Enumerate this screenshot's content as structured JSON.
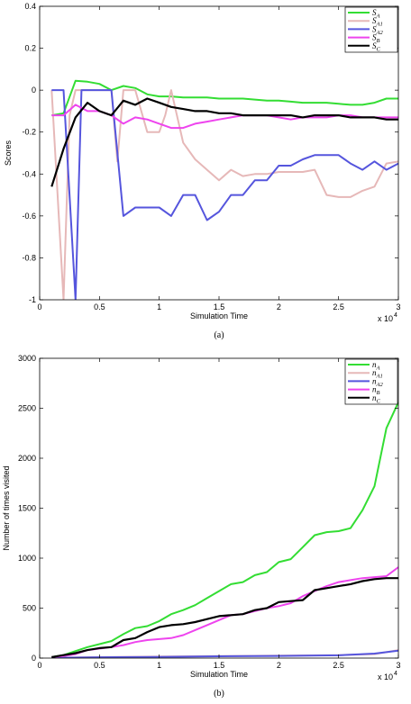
{
  "chart_data": [
    {
      "type": "line",
      "caption": "(a)",
      "xlabel": "Simulation Time",
      "ylabel": "Scores",
      "x_multiplier": "x 10",
      "x_multiplier_exp": "4",
      "xlim": [
        0,
        3
      ],
      "ylim": [
        -1,
        0.4
      ],
      "xticks": [
        "0",
        "0.5",
        "1",
        "1.5",
        "2",
        "2.5",
        "3"
      ],
      "yticks": [
        "0.4",
        "0.2",
        "0",
        "-0.2",
        "-0.4",
        "-0.6",
        "-0.8",
        "-1"
      ],
      "xtick_values": [
        0,
        0.5,
        1,
        1.5,
        2,
        2.5,
        3
      ],
      "ytick_values": [
        0.4,
        0.2,
        0,
        -0.2,
        -0.4,
        -0.6,
        -0.8,
        -1
      ],
      "legend": "top-right",
      "grid": false,
      "series": [
        {
          "name": "S_A",
          "color": "#33dd33",
          "x": [
            0.1,
            0.2,
            0.3,
            0.4,
            0.5,
            0.6,
            0.7,
            0.8,
            0.9,
            1.0,
            1.1,
            1.2,
            1.3,
            1.4,
            1.5,
            1.6,
            1.7,
            1.8,
            1.9,
            2.0,
            2.1,
            2.2,
            2.3,
            2.4,
            2.5,
            2.6,
            2.7,
            2.8,
            2.9,
            3.0
          ],
          "y": [
            -0.12,
            -0.11,
            0.045,
            0.04,
            0.03,
            0.0,
            0.02,
            0.01,
            -0.02,
            -0.03,
            -0.03,
            -0.035,
            -0.035,
            -0.035,
            -0.04,
            -0.04,
            -0.04,
            -0.045,
            -0.05,
            -0.05,
            -0.055,
            -0.06,
            -0.06,
            -0.06,
            -0.065,
            -0.07,
            -0.07,
            -0.06,
            -0.04,
            -0.04
          ]
        },
        {
          "name": "S_A1",
          "color": "#e6b8b8",
          "x": [
            0.1,
            0.2,
            0.25,
            0.3,
            0.4,
            0.5,
            0.6,
            0.65,
            0.7,
            0.8,
            0.9,
            1.0,
            1.05,
            1.1,
            1.2,
            1.3,
            1.4,
            1.5,
            1.6,
            1.7,
            1.8,
            1.9,
            2.0,
            2.1,
            2.2,
            2.3,
            2.4,
            2.5,
            2.6,
            2.7,
            2.8,
            2.9,
            3.0
          ],
          "y": [
            0.0,
            -1.0,
            -0.12,
            0.0,
            0.0,
            0.0,
            0.0,
            -0.34,
            0.0,
            0.0,
            -0.2,
            -0.2,
            -0.12,
            0.0,
            -0.25,
            -0.33,
            -0.38,
            -0.43,
            -0.38,
            -0.41,
            -0.4,
            -0.4,
            -0.39,
            -0.39,
            -0.39,
            -0.38,
            -0.5,
            -0.51,
            -0.51,
            -0.48,
            -0.46,
            -0.35,
            -0.34
          ]
        },
        {
          "name": "S_A2",
          "color": "#5555dd",
          "x": [
            0.1,
            0.2,
            0.3,
            0.35,
            0.4,
            0.5,
            0.6,
            0.7,
            0.8,
            0.9,
            1.0,
            1.1,
            1.2,
            1.3,
            1.4,
            1.5,
            1.6,
            1.7,
            1.8,
            1.9,
            2.0,
            2.1,
            2.2,
            2.3,
            2.4,
            2.5,
            2.6,
            2.7,
            2.8,
            2.9,
            3.0
          ],
          "y": [
            0.0,
            0.0,
            -1.0,
            0.0,
            0.0,
            0.0,
            0.0,
            -0.6,
            -0.56,
            -0.56,
            -0.56,
            -0.6,
            -0.5,
            -0.5,
            -0.62,
            -0.58,
            -0.5,
            -0.5,
            -0.43,
            -0.43,
            -0.36,
            -0.36,
            -0.33,
            -0.31,
            -0.31,
            -0.31,
            -0.35,
            -0.38,
            -0.34,
            -0.38,
            -0.35
          ]
        },
        {
          "name": "S_B",
          "color": "#ee44ee",
          "x": [
            0.1,
            0.2,
            0.3,
            0.4,
            0.5,
            0.6,
            0.7,
            0.8,
            0.9,
            1.0,
            1.1,
            1.2,
            1.3,
            1.4,
            1.5,
            1.6,
            1.7,
            1.8,
            1.9,
            2.0,
            2.1,
            2.2,
            2.3,
            2.4,
            2.5,
            2.6,
            2.7,
            2.8,
            2.9,
            3.0
          ],
          "y": [
            -0.12,
            -0.12,
            -0.07,
            -0.1,
            -0.1,
            -0.12,
            -0.16,
            -0.13,
            -0.14,
            -0.16,
            -0.18,
            -0.18,
            -0.16,
            -0.15,
            -0.14,
            -0.13,
            -0.12,
            -0.12,
            -0.12,
            -0.13,
            -0.14,
            -0.13,
            -0.13,
            -0.13,
            -0.12,
            -0.12,
            -0.13,
            -0.13,
            -0.13,
            -0.13
          ]
        },
        {
          "name": "S_C",
          "color": "#000000",
          "x": [
            0.1,
            0.2,
            0.3,
            0.4,
            0.5,
            0.6,
            0.7,
            0.8,
            0.9,
            1.0,
            1.1,
            1.2,
            1.3,
            1.4,
            1.5,
            1.6,
            1.7,
            1.8,
            1.9,
            2.0,
            2.1,
            2.2,
            2.3,
            2.4,
            2.5,
            2.6,
            2.7,
            2.8,
            2.9,
            3.0
          ],
          "y": [
            -0.46,
            -0.28,
            -0.13,
            -0.06,
            -0.1,
            -0.12,
            -0.05,
            -0.07,
            -0.04,
            -0.06,
            -0.08,
            -0.09,
            -0.1,
            -0.1,
            -0.11,
            -0.11,
            -0.12,
            -0.12,
            -0.12,
            -0.12,
            -0.12,
            -0.13,
            -0.12,
            -0.12,
            -0.12,
            -0.13,
            -0.13,
            -0.13,
            -0.14,
            -0.14
          ]
        }
      ]
    },
    {
      "type": "line",
      "caption": "(b)",
      "xlabel": "Simulation Time",
      "ylabel": "Number of times visited",
      "x_multiplier": "x 10",
      "x_multiplier_exp": "4",
      "xlim": [
        0,
        3
      ],
      "ylim": [
        0,
        3000
      ],
      "xticks": [
        "0",
        "0.5",
        "1",
        "1.5",
        "2",
        "2.5",
        "3"
      ],
      "yticks": [
        "3000",
        "2500",
        "2000",
        "1500",
        "1000",
        "500",
        "0"
      ],
      "xtick_values": [
        0,
        0.5,
        1,
        1.5,
        2,
        2.5,
        3
      ],
      "ytick_values": [
        3000,
        2500,
        2000,
        1500,
        1000,
        500,
        0
      ],
      "legend": "top-right",
      "grid": false,
      "series": [
        {
          "name": "n_A",
          "color": "#33dd33",
          "x": [
            0.1,
            0.2,
            0.3,
            0.4,
            0.5,
            0.6,
            0.7,
            0.8,
            0.9,
            1.0,
            1.1,
            1.2,
            1.3,
            1.4,
            1.5,
            1.6,
            1.7,
            1.8,
            1.9,
            2.0,
            2.1,
            2.2,
            2.3,
            2.4,
            2.5,
            2.6,
            2.7,
            2.8,
            2.9,
            3.0
          ],
          "y": [
            10,
            30,
            70,
            110,
            140,
            170,
            240,
            300,
            320,
            370,
            440,
            480,
            530,
            600,
            670,
            740,
            760,
            830,
            860,
            960,
            990,
            1110,
            1230,
            1260,
            1270,
            1300,
            1480,
            1720,
            2300,
            2560
          ]
        },
        {
          "name": "n_A1",
          "color": "#e6b8b8",
          "x": [
            0.1,
            0.5,
            1.0,
            1.5,
            2.0,
            2.5,
            2.8,
            3.0
          ],
          "y": [
            2,
            10,
            15,
            20,
            25,
            30,
            40,
            80
          ]
        },
        {
          "name": "n_A2",
          "color": "#5555dd",
          "x": [
            0.1,
            0.5,
            1.0,
            1.5,
            2.0,
            2.5,
            2.8,
            3.0
          ],
          "y": [
            2,
            8,
            12,
            18,
            22,
            28,
            45,
            75
          ]
        },
        {
          "name": "n_B",
          "color": "#ee44ee",
          "x": [
            0.1,
            0.2,
            0.3,
            0.4,
            0.5,
            0.6,
            0.7,
            0.8,
            0.9,
            1.0,
            1.1,
            1.2,
            1.3,
            1.4,
            1.5,
            1.6,
            1.7,
            1.8,
            1.9,
            2.0,
            2.1,
            2.2,
            2.3,
            2.4,
            2.5,
            2.6,
            2.7,
            2.8,
            2.9,
            3.0
          ],
          "y": [
            10,
            20,
            40,
            80,
            95,
            110,
            130,
            160,
            180,
            190,
            200,
            230,
            280,
            330,
            380,
            430,
            440,
            470,
            500,
            520,
            550,
            620,
            670,
            720,
            760,
            780,
            800,
            810,
            820,
            910
          ]
        },
        {
          "name": "n_C",
          "color": "#000000",
          "x": [
            0.1,
            0.2,
            0.3,
            0.4,
            0.5,
            0.6,
            0.7,
            0.8,
            0.9,
            1.0,
            1.1,
            1.2,
            1.3,
            1.4,
            1.5,
            1.6,
            1.7,
            1.8,
            1.9,
            2.0,
            2.1,
            2.2,
            2.3,
            2.4,
            2.5,
            2.6,
            2.7,
            2.8,
            2.9,
            3.0
          ],
          "y": [
            10,
            30,
            50,
            80,
            100,
            110,
            180,
            200,
            260,
            310,
            330,
            340,
            360,
            390,
            420,
            430,
            440,
            480,
            500,
            560,
            570,
            580,
            680,
            700,
            720,
            740,
            770,
            790,
            800,
            800
          ]
        }
      ]
    }
  ]
}
